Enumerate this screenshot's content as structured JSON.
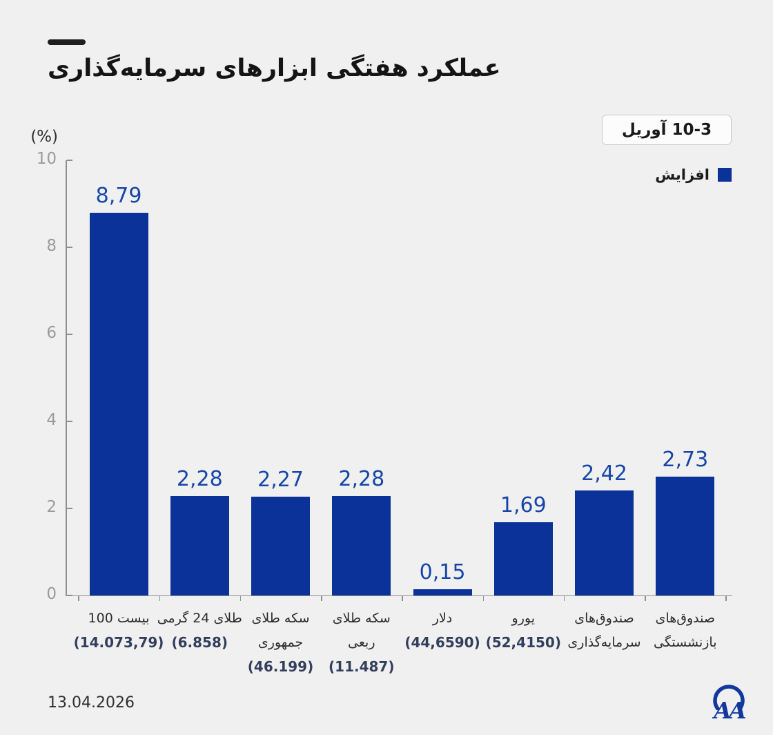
{
  "title": "عملکرد هفتگی ابزارهای سرمایه‌گذاری",
  "date_badge": "10-3 آوریل",
  "unit_label": "(%)",
  "legend": {
    "label": "افزایش"
  },
  "footer_date": "13.04.2026",
  "logo": {
    "text": "AA"
  },
  "colors": {
    "bar_blue": "#0a3298",
    "value_blue": "#1646a8",
    "sub_navy": "#333e5c",
    "bg": "#f0f0f1",
    "axis_gray": "#8f8f8f",
    "tick_gray": "#9b9b9b",
    "text_dark": "#1c1c1c",
    "badge_border": "#c7c7c9",
    "badge_bg": "#fcfcfd",
    "logo_blue": "#12389d"
  },
  "chart_data": {
    "type": "bar",
    "title": "عملکرد هفتگی ابزارهای سرمایه‌گذاری",
    "series_name": "افزایش",
    "ylabel": "(%)",
    "xlabel": "",
    "ylim": [
      0,
      10
    ],
    "yticks": [
      0,
      2,
      4,
      6,
      8,
      10
    ],
    "grid": false,
    "legend_position": "top-right",
    "values": [
      8.79,
      2.28,
      2.27,
      2.28,
      0.15,
      1.69,
      2.42,
      2.73
    ],
    "value_labels": [
      "8,79",
      "2,28",
      "2,27",
      "2,28",
      "0,15",
      "1,69",
      "2,42",
      "2,73"
    ],
    "categories": [
      {
        "lines": [
          "بیست 100"
        ],
        "value": "(14.073,79)"
      },
      {
        "lines": [
          "طلای 24 گرمی"
        ],
        "value": "(6.858)"
      },
      {
        "lines": [
          "سکه طلای",
          "جمهوری"
        ],
        "value": "(46.199)"
      },
      {
        "lines": [
          "سکه طلای",
          "ربعی"
        ],
        "value": "(11.487)"
      },
      {
        "lines": [
          "دلار"
        ],
        "value": "(44,6590)"
      },
      {
        "lines": [
          "یورو"
        ],
        "value": "(52,4150)"
      },
      {
        "lines": [
          "صندوق‌های",
          "سرمایه‌گذاری"
        ],
        "value": ""
      },
      {
        "lines": [
          "صندوق‌های",
          "بازنشستگی"
        ],
        "value": ""
      }
    ]
  }
}
